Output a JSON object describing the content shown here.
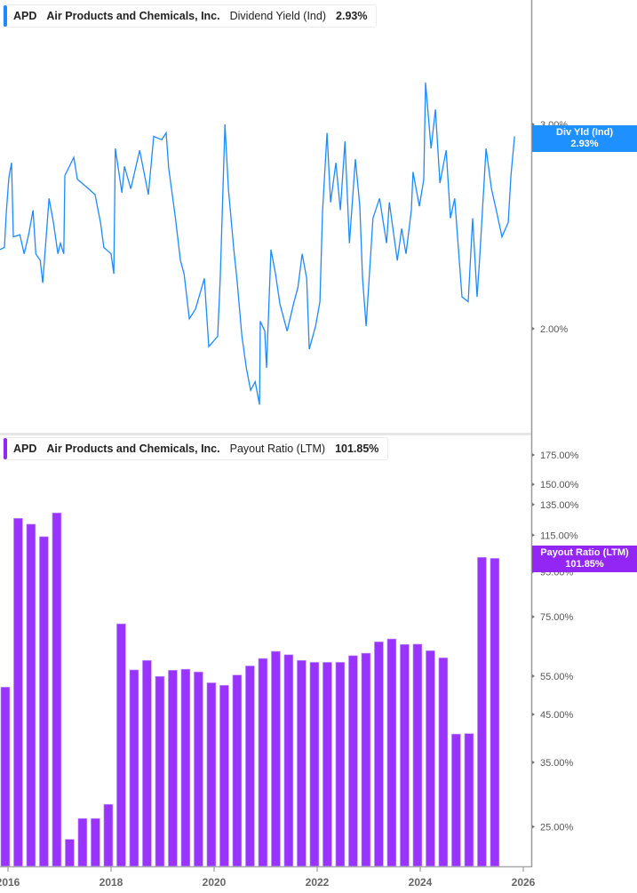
{
  "colors": {
    "yield_line": "#1a8cff",
    "yield_badge": "#1e90ff",
    "payout_bar": "#9933ff",
    "payout_badge": "#9326f5",
    "axis": "#999999"
  },
  "top_legend": {
    "ticker": "APD",
    "company": "Air Products and Chemicals, Inc.",
    "metric": "Dividend Yield (Ind)",
    "value": "2.93%"
  },
  "top_badge": {
    "label": "Div Yld (Ind)",
    "value": "2.93%"
  },
  "bottom_legend": {
    "ticker": "APD",
    "company": "Air Products and Chemicals, Inc.",
    "metric": "Payout Ratio (LTM)",
    "value": "101.85%"
  },
  "bottom_badge": {
    "label": "Payout Ratio (LTM)",
    "value": "101.85%"
  },
  "x_axis": {
    "ticks": [
      "2016",
      "2018",
      "2020",
      "2022",
      "2024",
      "2026"
    ]
  },
  "chart_data": [
    {
      "type": "line",
      "series": [
        {
          "name": "Dividend Yield (Ind)",
          "unit": "%"
        }
      ],
      "y_scale": "log",
      "y_ticks": [
        {
          "value": 3.0,
          "label": "3.00%"
        },
        {
          "value": 2.0,
          "label": "2.00%"
        }
      ],
      "x_range": [
        "2015-11",
        "2026-03"
      ],
      "grid": false,
      "points": [
        [
          "2015-11-04",
          2.34
        ],
        [
          "2015-12-06",
          2.35
        ],
        [
          "2015-12-19",
          2.52
        ],
        [
          "2016-01-07",
          2.7
        ],
        [
          "2016-01-26",
          2.78
        ],
        [
          "2016-02-08",
          2.4
        ],
        [
          "2016-03-24",
          2.41
        ],
        [
          "2016-04-24",
          2.32
        ],
        [
          "2016-05-25",
          2.41
        ],
        [
          "2016-06-26",
          2.53
        ],
        [
          "2016-07-15",
          2.32
        ],
        [
          "2016-08-16",
          2.29
        ],
        [
          "2016-09-04",
          2.19
        ],
        [
          "2016-10-18",
          2.59
        ],
        [
          "2016-11-18",
          2.47
        ],
        [
          "2016-12-20",
          2.32
        ],
        [
          "2017-01-07",
          2.37
        ],
        [
          "2017-02-01",
          2.32
        ],
        [
          "2017-02-08",
          2.71
        ],
        [
          "2017-04-11",
          2.81
        ],
        [
          "2017-05-06",
          2.69
        ],
        [
          "2017-07-08",
          2.65
        ],
        [
          "2017-09-09",
          2.61
        ],
        [
          "2017-10-17",
          2.47
        ],
        [
          "2017-11-11",
          2.35
        ],
        [
          "2018-01-01",
          2.32
        ],
        [
          "2018-01-20",
          2.23
        ],
        [
          "2018-02-01",
          2.86
        ],
        [
          "2018-03-17",
          2.62
        ],
        [
          "2018-04-05",
          2.76
        ],
        [
          "2018-05-19",
          2.64
        ],
        [
          "2018-07-21",
          2.85
        ],
        [
          "2018-09-22",
          2.61
        ],
        [
          "2018-10-29",
          2.93
        ],
        [
          "2018-12-25",
          2.91
        ],
        [
          "2019-01-26",
          2.95
        ],
        [
          "2019-02-14",
          2.75
        ],
        [
          "2019-03-29",
          2.5
        ],
        [
          "2019-05-06",
          2.29
        ],
        [
          "2019-05-31",
          2.23
        ],
        [
          "2019-07-08",
          2.04
        ],
        [
          "2019-08-21",
          2.08
        ],
        [
          "2019-10-23",
          2.21
        ],
        [
          "2019-11-24",
          1.93
        ],
        [
          "2020-01-26",
          1.97
        ],
        [
          "2020-02-14",
          2.21
        ],
        [
          "2020-03-17",
          3.0
        ],
        [
          "2020-04-11",
          2.64
        ],
        [
          "2020-05-19",
          2.34
        ],
        [
          "2020-06-13",
          2.19
        ],
        [
          "2020-07-15",
          1.97
        ],
        [
          "2020-08-16",
          1.85
        ],
        [
          "2020-09-16",
          1.77
        ],
        [
          "2020-10-18",
          1.8
        ],
        [
          "2020-11-18",
          1.72
        ],
        [
          "2020-11-24",
          2.03
        ],
        [
          "2020-12-25",
          1.99
        ],
        [
          "2021-01-07",
          1.85
        ],
        [
          "2021-02-08",
          2.34
        ],
        [
          "2021-03-10",
          2.23
        ],
        [
          "2021-04-11",
          2.1
        ],
        [
          "2021-05-31",
          1.99
        ],
        [
          "2021-07-15",
          2.1
        ],
        [
          "2021-08-16",
          2.17
        ],
        [
          "2021-09-16",
          2.32
        ],
        [
          "2021-10-18",
          2.21
        ],
        [
          "2021-11-06",
          1.92
        ],
        [
          "2021-12-20",
          2.01
        ],
        [
          "2022-01-20",
          2.11
        ],
        [
          "2022-02-08",
          2.52
        ],
        [
          "2022-03-10",
          2.95
        ],
        [
          "2022-04-05",
          2.57
        ],
        [
          "2022-05-12",
          2.78
        ],
        [
          "2022-06-13",
          2.53
        ],
        [
          "2022-07-15",
          2.9
        ],
        [
          "2022-08-16",
          2.37
        ],
        [
          "2022-09-28",
          2.8
        ],
        [
          "2022-10-29",
          2.55
        ],
        [
          "2022-11-18",
          2.21
        ],
        [
          "2022-12-13",
          2.01
        ],
        [
          "2023-02-01",
          2.49
        ],
        [
          "2023-03-17",
          2.59
        ],
        [
          "2023-05-06",
          2.37
        ],
        [
          "2023-05-25",
          2.57
        ],
        [
          "2023-07-21",
          2.29
        ],
        [
          "2023-08-21",
          2.44
        ],
        [
          "2023-09-22",
          2.32
        ],
        [
          "2023-10-29",
          2.53
        ],
        [
          "2023-11-11",
          2.73
        ],
        [
          "2023-12-25",
          2.55
        ],
        [
          "2024-01-26",
          2.69
        ],
        [
          "2024-02-08",
          3.26
        ],
        [
          "2024-03-17",
          2.86
        ],
        [
          "2024-04-17",
          3.09
        ],
        [
          "2024-05-19",
          2.67
        ],
        [
          "2024-07-02",
          2.85
        ],
        [
          "2024-08-02",
          2.49
        ],
        [
          "2024-09-02",
          2.59
        ],
        [
          "2024-10-23",
          2.13
        ],
        [
          "2024-12-06",
          2.11
        ],
        [
          "2025-01-07",
          2.49
        ],
        [
          "2025-02-08",
          2.13
        ],
        [
          "2025-02-26",
          2.3
        ],
        [
          "2025-04-11",
          2.86
        ],
        [
          "2025-05-19",
          2.64
        ],
        [
          "2025-06-19",
          2.54
        ],
        [
          "2025-08-02",
          2.4
        ],
        [
          "2025-09-16",
          2.47
        ],
        [
          "2025-10-05",
          2.71
        ],
        [
          "2025-10-30",
          2.93
        ]
      ]
    },
    {
      "type": "bar",
      "series": [
        {
          "name": "Payout Ratio (LTM)",
          "unit": "%"
        }
      ],
      "y_scale": "log",
      "y_ticks": [
        {
          "value": 175,
          "label": "175.00%"
        },
        {
          "value": 150,
          "label": "150.00%"
        },
        {
          "value": 135,
          "label": "135.00%"
        },
        {
          "value": 115,
          "label": "115.00%"
        },
        {
          "value": 95,
          "label": "95.00%"
        },
        {
          "value": 75,
          "label": "75.00%"
        },
        {
          "value": 55,
          "label": "55.00%"
        },
        {
          "value": 45,
          "label": "45.00%"
        },
        {
          "value": 35,
          "label": "35.00%"
        },
        {
          "value": 25,
          "label": "25.00%"
        }
      ],
      "grid": false,
      "categories": [
        "2015-12",
        "2016-03",
        "2016-06",
        "2016-09",
        "2016-12",
        "2017-03",
        "2017-06",
        "2017-09",
        "2017-12",
        "2018-03",
        "2018-06",
        "2018-09",
        "2018-12",
        "2019-03",
        "2019-06",
        "2019-09",
        "2019-12",
        "2020-03",
        "2020-06",
        "2020-09",
        "2020-12",
        "2021-03",
        "2021-06",
        "2021-09",
        "2021-12",
        "2022-03",
        "2022-06",
        "2022-09",
        "2022-12",
        "2023-03",
        "2023-06",
        "2023-09",
        "2023-12",
        "2024-03",
        "2024-06",
        "2024-09",
        "2024-12",
        "2025-03",
        "2025-06"
      ],
      "values": [
        51.9,
        125.6,
        121.8,
        114.1,
        129.2,
        23.4,
        26.1,
        26.1,
        28.1,
        72.3,
        56.8,
        59.7,
        54.9,
        56.7,
        57.0,
        56.2,
        53.1,
        52.4,
        55.3,
        58.0,
        60.3,
        62.6,
        61.5,
        59.7,
        59.1,
        59.1,
        59.1,
        61.2,
        62.0,
        65.8,
        66.8,
        64.9,
        65.0,
        62.8,
        60.5,
        40.6,
        40.7,
        102.4,
        101.85
      ]
    }
  ]
}
